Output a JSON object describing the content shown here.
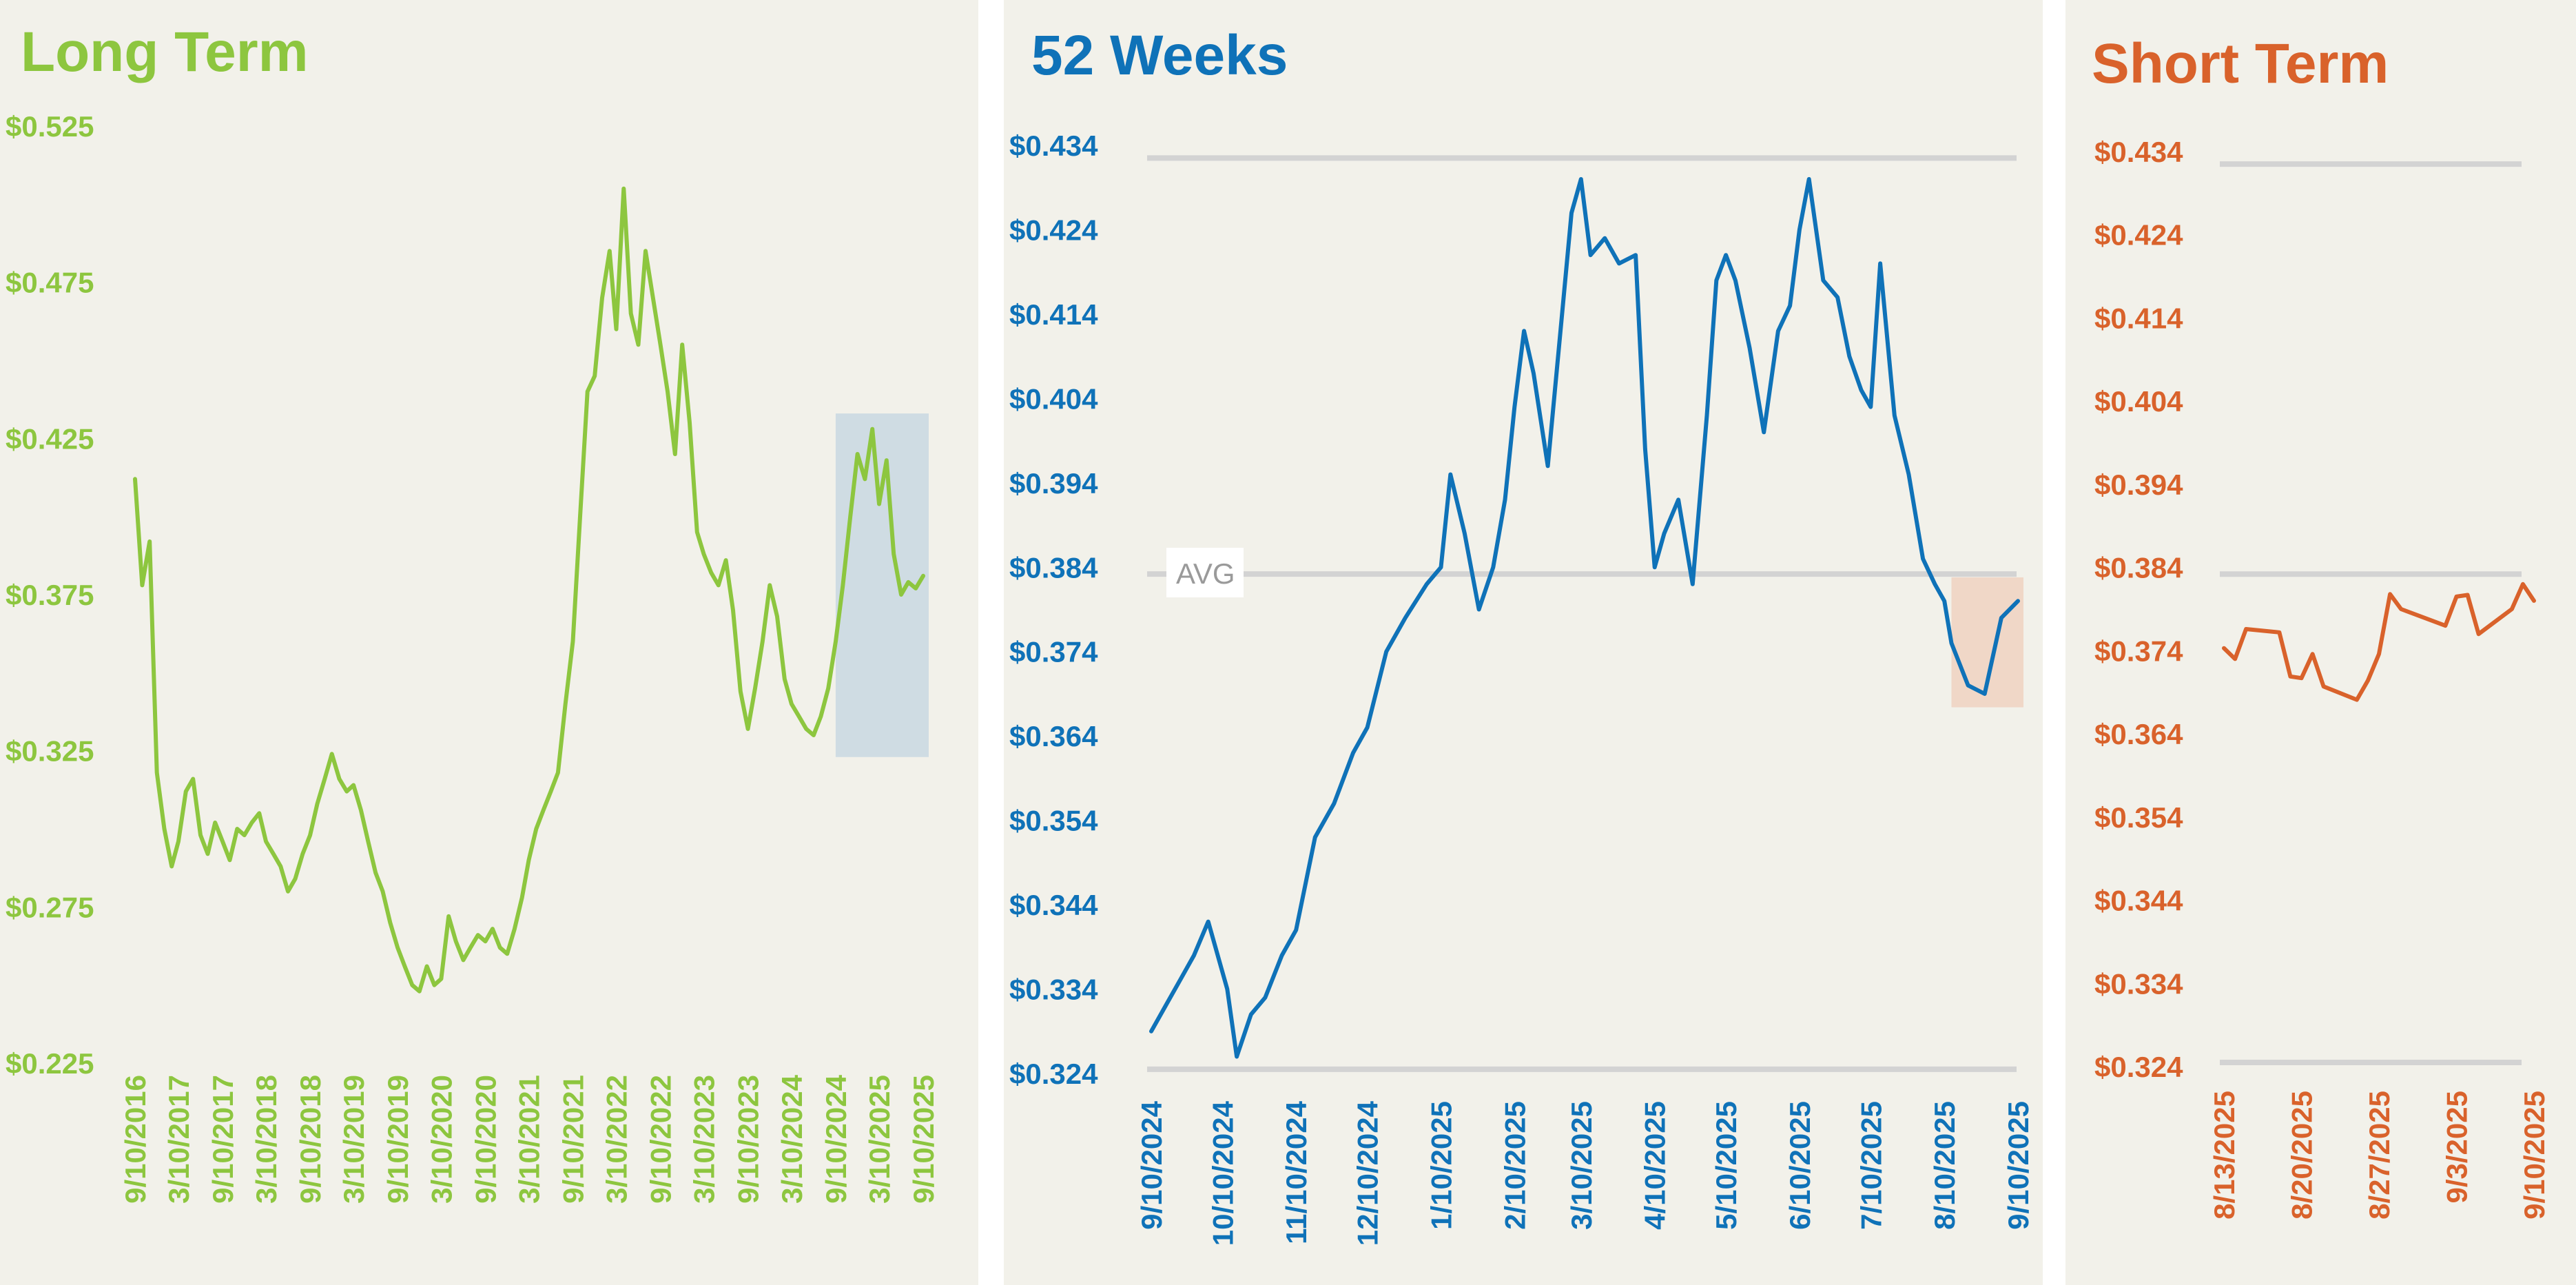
{
  "colors": {
    "background": "#f2f1ea",
    "long_term": "#8dc63f",
    "weeks_52": "#0f72b8",
    "short_term": "#d9622b",
    "gridline": "#d3d3d3",
    "long_highlight": "#cfdce3",
    "weeks_highlight": "#f0d7c7"
  },
  "chart_data": [
    {
      "id": "long_term",
      "type": "line",
      "title": "Long Term",
      "ylim": [
        0.225,
        0.525
      ],
      "y_ticks": [
        "$0.525",
        "$0.475",
        "$0.425",
        "$0.375",
        "$0.325",
        "$0.275",
        "$0.225"
      ],
      "y_tick_values": [
        0.525,
        0.475,
        0.425,
        0.375,
        0.325,
        0.275,
        0.225
      ],
      "x_ticks": [
        "9/10/2016",
        "3/10/2017",
        "9/10/2017",
        "3/10/2018",
        "9/10/2018",
        "3/10/2019",
        "9/10/2019",
        "3/10/2020",
        "9/10/2020",
        "3/10/2021",
        "9/10/2021",
        "3/10/2022",
        "9/10/2022",
        "3/10/2023",
        "9/10/2023",
        "3/10/2024",
        "9/10/2024",
        "3/10/2025",
        "9/10/2025"
      ],
      "grid": false,
      "highlight": {
        "x_from": "9/10/2024",
        "x_to": "9/10/2025",
        "y_from": 0.323,
        "y_to": 0.433
      },
      "series": [
        {
          "x": [
            "9/10/2016",
            "10/10/2016",
            "11/10/2016",
            "12/10/2016",
            "1/10/2017",
            "2/10/2017",
            "3/10/2017",
            "4/10/2017",
            "5/10/2017",
            "6/10/2017",
            "7/10/2017",
            "8/10/2017",
            "9/10/2017",
            "10/10/2017",
            "11/10/2017",
            "12/10/2017",
            "1/10/2018",
            "2/10/2018",
            "3/10/2018",
            "4/10/2018",
            "5/10/2018",
            "6/10/2018",
            "7/10/2018",
            "8/10/2018",
            "9/10/2018",
            "10/10/2018",
            "11/10/2018",
            "12/10/2018",
            "1/10/2019",
            "2/10/2019",
            "3/10/2019",
            "4/10/2019",
            "5/10/2019",
            "6/10/2019",
            "7/10/2019",
            "8/10/2019",
            "9/10/2019",
            "10/10/2019",
            "11/10/2019",
            "12/10/2019",
            "1/10/2020",
            "2/10/2020",
            "3/10/2020",
            "4/10/2020",
            "5/10/2020",
            "6/10/2020",
            "7/10/2020",
            "8/10/2020",
            "9/10/2020",
            "10/10/2020",
            "11/10/2020",
            "12/10/2020",
            "1/10/2021",
            "2/10/2021",
            "3/10/2021",
            "4/10/2021",
            "5/10/2021",
            "6/10/2021",
            "7/10/2021",
            "8/10/2021",
            "9/10/2021",
            "10/10/2021",
            "11/10/2021",
            "12/10/2021",
            "1/10/2022",
            "2/10/2022",
            "3/10/2022",
            "4/10/2022",
            "5/10/2022",
            "6/10/2022",
            "7/10/2022",
            "8/10/2022",
            "9/10/2022",
            "10/10/2022",
            "11/10/2022",
            "12/10/2022",
            "1/10/2023",
            "2/10/2023",
            "3/10/2023",
            "4/10/2023",
            "5/10/2023",
            "6/10/2023",
            "7/10/2023",
            "8/10/2023",
            "9/10/2023",
            "10/10/2023",
            "11/10/2023",
            "12/10/2023",
            "1/10/2024",
            "2/10/2024",
            "3/10/2024",
            "4/10/2024",
            "5/10/2024",
            "6/10/2024",
            "7/10/2024",
            "8/10/2024",
            "9/10/2024",
            "10/10/2024",
            "11/10/2024",
            "12/10/2024",
            "1/10/2025",
            "2/10/2025",
            "3/10/2025",
            "4/10/2025",
            "5/10/2025",
            "6/10/2025",
            "7/10/2025",
            "8/10/2025",
            "9/10/2025"
          ],
          "y": [
            0.412,
            0.378,
            0.392,
            0.318,
            0.3,
            0.288,
            0.296,
            0.312,
            0.316,
            0.298,
            0.292,
            0.302,
            0.296,
            0.29,
            0.3,
            0.298,
            0.302,
            0.305,
            0.296,
            0.292,
            0.288,
            0.28,
            0.284,
            0.292,
            0.298,
            0.308,
            0.316,
            0.324,
            0.316,
            0.312,
            0.314,
            0.306,
            0.296,
            0.286,
            0.28,
            0.27,
            0.262,
            0.256,
            0.25,
            0.248,
            0.256,
            0.25,
            0.252,
            0.272,
            0.264,
            0.258,
            0.262,
            0.266,
            0.264,
            0.268,
            0.262,
            0.26,
            0.268,
            0.278,
            0.29,
            0.3,
            0.306,
            0.312,
            0.318,
            0.34,
            0.36,
            0.4,
            0.44,
            0.445,
            0.47,
            0.485,
            0.46,
            0.505,
            0.465,
            0.455,
            0.485,
            0.47,
            0.455,
            0.44,
            0.42,
            0.455,
            0.43,
            0.395,
            0.388,
            0.382,
            0.378,
            0.386,
            0.37,
            0.344,
            0.332,
            0.345,
            0.36,
            0.378,
            0.368,
            0.348,
            0.34,
            0.336,
            0.332,
            0.33,
            0.336,
            0.345,
            0.36,
            0.378,
            0.4,
            0.42,
            0.412,
            0.428,
            0.404,
            0.418,
            0.388,
            0.375,
            0.379,
            0.377,
            0.381
          ]
        }
      ]
    },
    {
      "id": "weeks_52",
      "type": "line",
      "title": "52 Weeks",
      "ylim": [
        0.324,
        0.434
      ],
      "y_ticks": [
        "$0.434",
        "$0.424",
        "$0.414",
        "$0.404",
        "$0.394",
        "$0.384",
        "$0.374",
        "$0.364",
        "$0.354",
        "$0.344",
        "$0.334",
        "$0.324"
      ],
      "y_tick_values": [
        0.434,
        0.424,
        0.414,
        0.404,
        0.394,
        0.384,
        0.374,
        0.364,
        0.354,
        0.344,
        0.334,
        0.324
      ],
      "x_ticks": [
        "9/10/2024",
        "10/10/2024",
        "11/10/2024",
        "12/10/2024",
        "1/10/2025",
        "2/10/2025",
        "3/10/2025",
        "4/10/2025",
        "5/10/2025",
        "6/10/2025",
        "7/10/2025",
        "8/10/2025",
        "9/10/2025"
      ],
      "grid": "min/avg/max reference lines",
      "reference_lines": [
        {
          "y": 0.4325
        },
        {
          "y": 0.3832,
          "label": "AVG"
        },
        {
          "y": 0.3245
        }
      ],
      "highlight": {
        "x_from": "8/13/2025",
        "x_to": "9/10/2025",
        "y_from": 0.3674,
        "y_to": 0.3828
      },
      "series": [
        {
          "x": [
            "9/10/2024",
            "9/16/2024",
            "9/22/2024",
            "9/28/2024",
            "10/4/2024",
            "10/8/2024",
            "10/12/2024",
            "10/16/2024",
            "10/22/2024",
            "10/28/2024",
            "11/4/2024",
            "11/10/2024",
            "11/18/2024",
            "11/26/2024",
            "12/4/2024",
            "12/10/2024",
            "12/18/2024",
            "12/26/2024",
            "1/4/2025",
            "1/10/2025",
            "1/14/2025",
            "1/20/2025",
            "1/26/2025",
            "2/1/2025",
            "2/6/2025",
            "2/10/2025",
            "2/14/2025",
            "2/18/2025",
            "2/24/2025",
            "3/2/2025",
            "3/6/2025",
            "3/10/2025",
            "3/14/2025",
            "3/20/2025",
            "3/26/2025",
            "4/2/2025",
            "4/6/2025",
            "4/10/2025",
            "4/14/2025",
            "4/20/2025",
            "4/26/2025",
            "5/2/2025",
            "5/6/2025",
            "5/10/2025",
            "5/14/2025",
            "5/20/2025",
            "5/26/2025",
            "6/1/2025",
            "6/6/2025",
            "6/10/2025",
            "6/14/2025",
            "6/20/2025",
            "6/26/2025",
            "7/1/2025",
            "7/6/2025",
            "7/10/2025",
            "7/14/2025",
            "7/20/2025",
            "7/26/2025",
            "8/1/2025",
            "8/6/2025",
            "8/10/2025",
            "8/13/2025",
            "8/20/2025",
            "8/27/2025",
            "9/3/2025",
            "9/10/2025"
          ],
          "y": [
            0.329,
            0.332,
            0.335,
            0.338,
            0.342,
            0.338,
            0.334,
            0.326,
            0.331,
            0.333,
            0.338,
            0.341,
            0.352,
            0.356,
            0.362,
            0.365,
            0.374,
            0.378,
            0.382,
            0.384,
            0.395,
            0.388,
            0.379,
            0.384,
            0.392,
            0.403,
            0.412,
            0.407,
            0.396,
            0.414,
            0.426,
            0.43,
            0.421,
            0.423,
            0.42,
            0.421,
            0.398,
            0.384,
            0.388,
            0.392,
            0.382,
            0.402,
            0.418,
            0.421,
            0.418,
            0.41,
            0.4,
            0.412,
            0.415,
            0.424,
            0.43,
            0.418,
            0.416,
            0.409,
            0.405,
            0.403,
            0.42,
            0.402,
            0.395,
            0.385,
            0.382,
            0.38,
            0.375,
            0.37,
            0.369,
            0.378,
            0.38
          ]
        }
      ]
    },
    {
      "id": "short_term",
      "type": "line",
      "title": "Short Term",
      "ylim": [
        0.324,
        0.434
      ],
      "y_ticks": [
        "$0.434",
        "$0.424",
        "$0.414",
        "$0.404",
        "$0.394",
        "$0.384",
        "$0.374",
        "$0.364",
        "$0.354",
        "$0.344",
        "$0.334",
        "$0.324"
      ],
      "y_tick_values": [
        0.434,
        0.424,
        0.414,
        0.404,
        0.394,
        0.384,
        0.374,
        0.364,
        0.354,
        0.344,
        0.334,
        0.324
      ],
      "x_ticks": [
        "8/13/2025",
        "8/20/2025",
        "8/27/2025",
        "9/3/2025",
        "9/10/2025"
      ],
      "grid": "min/avg/max reference lines",
      "reference_lines": [
        {
          "y": 0.4325
        },
        {
          "y": 0.3832
        },
        {
          "y": 0.3245
        }
      ],
      "series": [
        {
          "x": [
            "8/13/2025",
            "8/14/2025",
            "8/15/2025",
            "8/18/2025",
            "8/19/2025",
            "8/20/2025",
            "8/21/2025",
            "8/22/2025",
            "8/25/2025",
            "8/26/2025",
            "8/27/2025",
            "8/28/2025",
            "8/29/2025",
            "9/2/2025",
            "9/3/2025",
            "9/4/2025",
            "9/5/2025",
            "9/8/2025",
            "9/9/2025",
            "9/10/2025"
          ],
          "y": [
            0.3743,
            0.373,
            0.3766,
            0.3762,
            0.3709,
            0.3707,
            0.3736,
            0.3697,
            0.3681,
            0.3704,
            0.3736,
            0.3808,
            0.379,
            0.377,
            0.3805,
            0.3807,
            0.376,
            0.379,
            0.382,
            0.38
          ]
        }
      ]
    }
  ]
}
